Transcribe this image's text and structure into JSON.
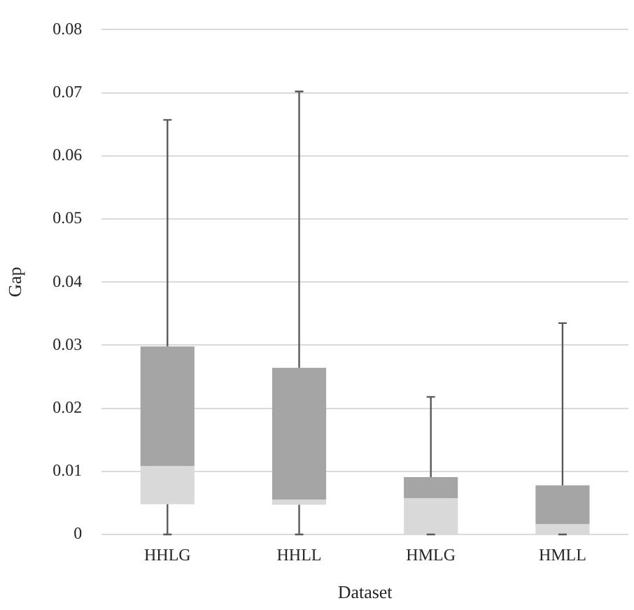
{
  "chart_data": {
    "type": "box",
    "xlabel": "Dataset",
    "ylabel": "Gap",
    "categories": [
      "HHLG",
      "HHLL",
      "HMLG",
      "HMLL"
    ],
    "colors": [
      [
        "#d9d9d9",
        "#a5a5a5"
      ],
      [
        "#d9d9d9",
        "#a5a5a5"
      ],
      [
        "#d9d9d9",
        "#a5a5a5"
      ],
      [
        "#d9d9d9",
        "#a5a5a5"
      ]
    ],
    "boxes": [
      {
        "low": 0,
        "q1": 0.0048,
        "median": 0.0108,
        "q3": 0.0298,
        "high": 0.0657
      },
      {
        "low": 0,
        "q1": 0.0047,
        "median": 0.0055,
        "q3": 0.0264,
        "high": 0.0702
      },
      {
        "low": 0,
        "q1": 0,
        "median": 0.0057,
        "q3": 0.0091,
        "high": 0.0218
      },
      {
        "low": 0,
        "q1": 0,
        "median": 0.0016,
        "q3": 0.0078,
        "high": 0.0335
      }
    ],
    "ylim": [
      0,
      0.08
    ],
    "yticks": [
      0,
      0.01,
      0.02,
      0.03,
      0.04,
      0.05,
      0.06,
      0.07,
      0.08
    ],
    "grid": "y",
    "legend": false
  }
}
